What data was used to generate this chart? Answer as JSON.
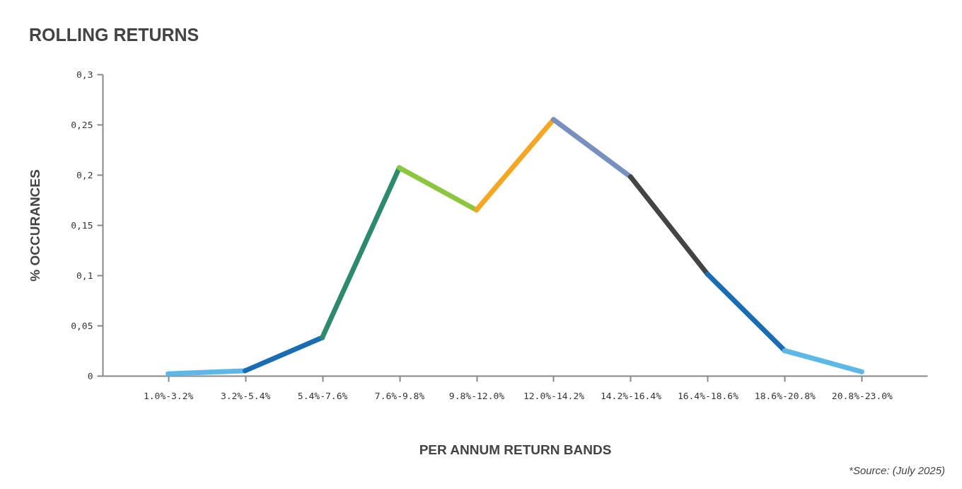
{
  "chart_data": {
    "type": "line",
    "title": "ROLLING RETURNS",
    "xlabel": "PER ANNUM RETURN BANDS",
    "ylabel": "% OCCURANCES",
    "categories": [
      "1.0%-3.2%",
      "3.2%-5.4%",
      "5.4%-7.6%",
      "7.6%-9.8%",
      "9.8%-12.0%",
      "12.0%-14.2%",
      "14.2%-16.4%",
      "16.4%-18.6%",
      "18.6%-20.8%",
      "20.8%-23.0%"
    ],
    "series": [
      {
        "color": "#5cb8e8",
        "values": [
          0.002,
          0.005,
          null,
          null,
          null,
          null,
          null,
          null,
          null,
          null
        ]
      },
      {
        "color": "#1a6db3",
        "values": [
          null,
          0.005,
          0.038,
          null,
          null,
          null,
          null,
          null,
          null,
          null
        ]
      },
      {
        "color": "#2e8a6c",
        "values": [
          null,
          null,
          0.038,
          0.207,
          null,
          null,
          null,
          null,
          null,
          null
        ]
      },
      {
        "color": "#8cc63f",
        "values": [
          null,
          null,
          null,
          0.207,
          0.165,
          null,
          null,
          null,
          null,
          null
        ]
      },
      {
        "color": "#f5a623",
        "values": [
          null,
          null,
          null,
          null,
          0.165,
          0.255,
          null,
          null,
          null,
          null
        ]
      },
      {
        "color": "#7890c0",
        "values": [
          null,
          null,
          null,
          null,
          null,
          0.255,
          0.198,
          null,
          null,
          null
        ]
      },
      {
        "color": "#444444",
        "values": [
          null,
          null,
          null,
          null,
          null,
          null,
          0.198,
          0.101,
          null,
          null
        ]
      },
      {
        "color": "#1a6db3",
        "values": [
          null,
          null,
          null,
          null,
          null,
          null,
          null,
          0.101,
          0.025,
          null
        ]
      },
      {
        "color": "#5cb8e8",
        "values": [
          null,
          null,
          null,
          null,
          null,
          null,
          null,
          null,
          0.025,
          0.004
        ]
      }
    ],
    "ylim": [
      0,
      0.3
    ],
    "yticks": [
      {
        "value": 0,
        "label": "0"
      },
      {
        "value": 0.05,
        "label": "0,05"
      },
      {
        "value": 0.1,
        "label": "0,1"
      },
      {
        "value": 0.15,
        "label": "0,15"
      },
      {
        "value": 0.2,
        "label": "0,2"
      },
      {
        "value": 0.25,
        "label": "0,25"
      },
      {
        "value": 0.3,
        "label": "0,3"
      }
    ],
    "grid": false,
    "legend": false,
    "marker": "none",
    "line_style": "solid",
    "annotations": [
      "*Source: (July 2025)"
    ]
  }
}
